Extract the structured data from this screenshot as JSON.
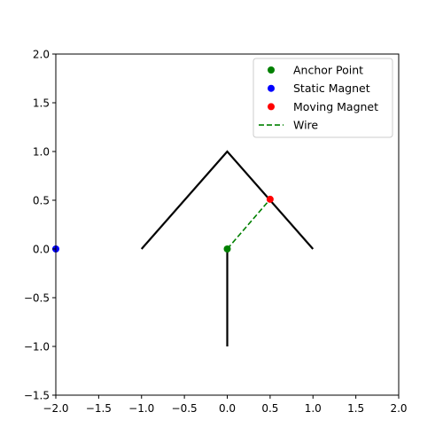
{
  "chart_data": {
    "type": "scatter",
    "xlim": [
      -2.0,
      2.0
    ],
    "ylim": [
      -1.5,
      2.0
    ],
    "x_ticks": [
      -2.0,
      -1.5,
      -1.0,
      -0.5,
      0.0,
      0.5,
      1.0,
      1.5,
      2.0
    ],
    "x_tick_labels": [
      "−2.0",
      "−1.5",
      "−1.0",
      "−0.5",
      "0.0",
      "0.5",
      "1.0",
      "1.5",
      "2.0"
    ],
    "y_ticks": [
      -1.5,
      -1.0,
      -0.5,
      0.0,
      0.5,
      1.0,
      1.5,
      2.0
    ],
    "y_tick_labels": [
      "−1.5",
      "−1.0",
      "−0.5",
      "0.0",
      "0.5",
      "1.0",
      "1.5",
      "2.0"
    ],
    "grid": false,
    "legend_position": "top-right",
    "structure_lines": [
      {
        "x": [
          -1.0,
          0.0,
          1.0
        ],
        "y": [
          0.0,
          1.0,
          0.0
        ],
        "color": "#000000"
      },
      {
        "x": [
          0.0,
          0.0
        ],
        "y": [
          0.0,
          -1.0
        ],
        "color": "#000000"
      }
    ],
    "series": [
      {
        "name": "Anchor Point",
        "kind": "point",
        "x": [
          0.0
        ],
        "y": [
          0.0
        ],
        "color": "#008000"
      },
      {
        "name": "Static Magnet",
        "kind": "point",
        "x": [
          -2.0
        ],
        "y": [
          0.0
        ],
        "color": "#0000ff"
      },
      {
        "name": "Moving Magnet",
        "kind": "point",
        "x": [
          0.5
        ],
        "y": [
          0.51
        ],
        "color": "#ff0000"
      },
      {
        "name": "Wire",
        "kind": "dashed-line",
        "x": [
          0.0,
          0.5
        ],
        "y": [
          0.0,
          0.51
        ],
        "color": "#008000"
      }
    ]
  }
}
